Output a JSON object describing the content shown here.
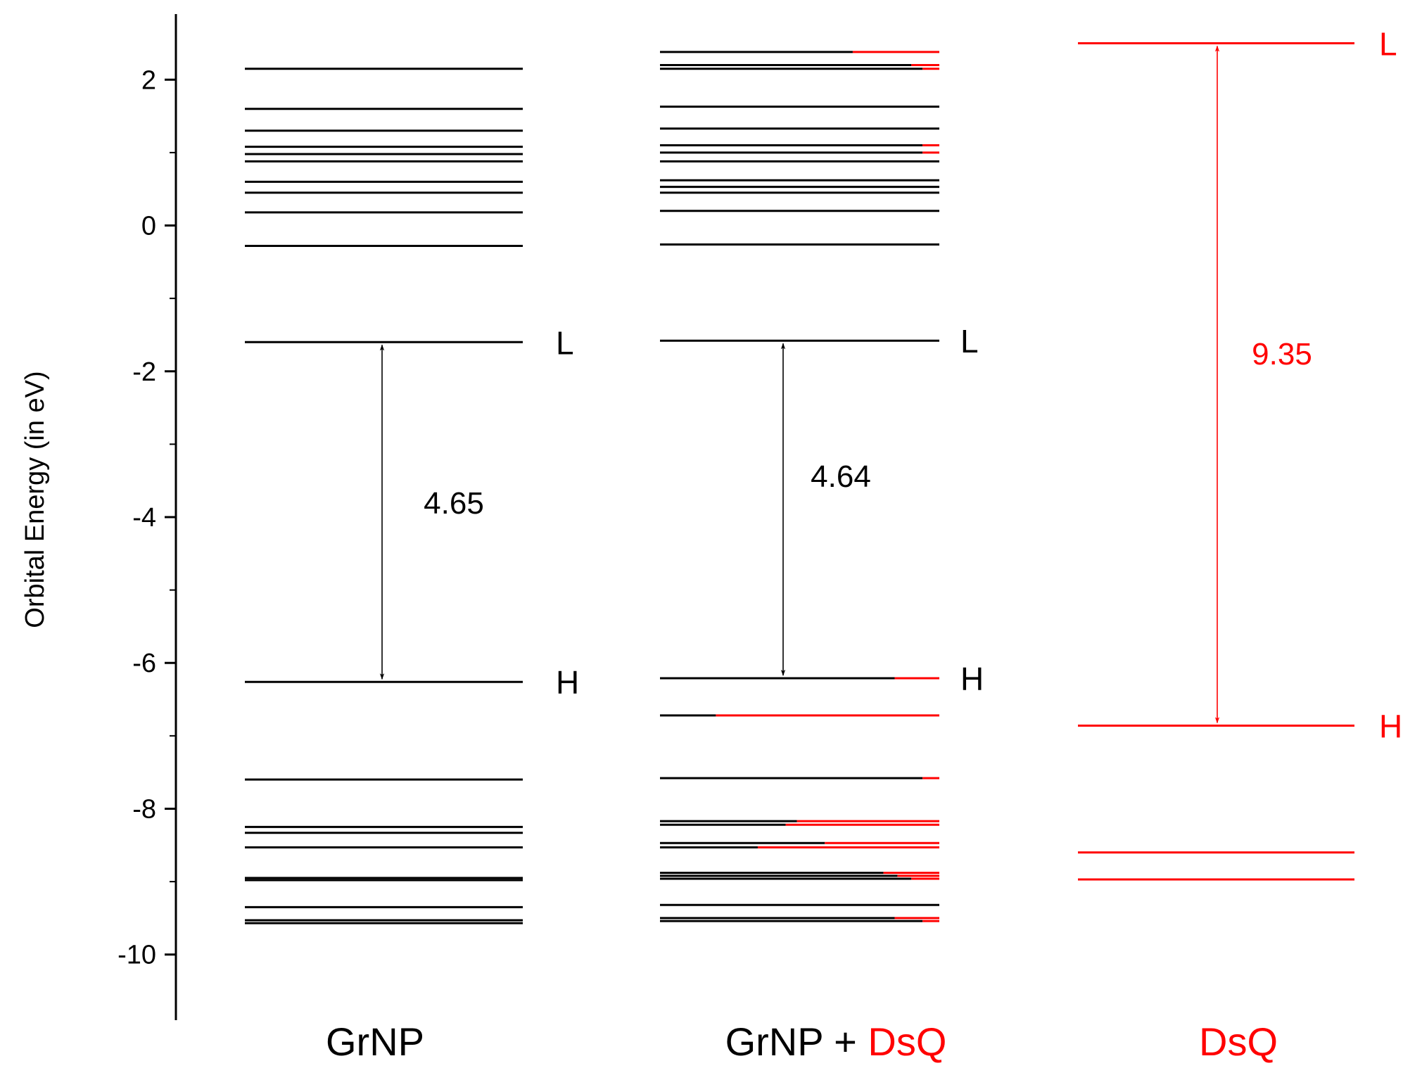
{
  "chart_data": {
    "type": "energy-level diagram",
    "ylabel": "Orbital Energy (in eV)",
    "ylim": [
      -10.9,
      2.9
    ],
    "yticks": [
      -10,
      -8,
      -6,
      -4,
      -2,
      0,
      2
    ],
    "ytick_labels": [
      "-10",
      "-8",
      "-6",
      "-4",
      "-2",
      "0",
      "2"
    ],
    "colors": {
      "primary": "#000000",
      "accent": "#ff0000"
    },
    "columns": [
      {
        "label_parts": [
          {
            "text": "GrNP",
            "color": "#000000"
          }
        ],
        "levels": [
          {
            "energy": 2.15,
            "red_fraction": 0
          },
          {
            "energy": 1.6,
            "red_fraction": 0
          },
          {
            "energy": 1.3,
            "red_fraction": 0
          },
          {
            "energy": 1.08,
            "red_fraction": 0
          },
          {
            "energy": 0.98,
            "red_fraction": 0
          },
          {
            "energy": 0.88,
            "red_fraction": 0
          },
          {
            "energy": 0.6,
            "red_fraction": 0
          },
          {
            "energy": 0.45,
            "red_fraction": 0
          },
          {
            "energy": 0.18,
            "red_fraction": 0
          },
          {
            "energy": -0.28,
            "red_fraction": 0
          },
          {
            "energy": -1.6,
            "red_fraction": 0
          },
          {
            "energy": -6.26,
            "red_fraction": 0
          },
          {
            "energy": -7.6,
            "red_fraction": 0
          },
          {
            "energy": -8.25,
            "red_fraction": 0
          },
          {
            "energy": -8.33,
            "red_fraction": 0
          },
          {
            "energy": -8.53,
            "red_fraction": 0
          },
          {
            "energy": -8.95,
            "red_fraction": 0
          },
          {
            "energy": -8.98,
            "red_fraction": 0
          },
          {
            "energy": -9.35,
            "red_fraction": 0
          },
          {
            "energy": -9.53,
            "red_fraction": 0
          },
          {
            "energy": -9.57,
            "red_fraction": 0
          }
        ],
        "lumo": {
          "energy": -1.6,
          "label": "L"
        },
        "homo": {
          "energy": -6.26,
          "label": "H"
        },
        "gap": {
          "value": "4.65"
        }
      },
      {
        "label_parts": [
          {
            "text": "GrNP + ",
            "color": "#000000"
          },
          {
            "text": "DsQ",
            "color": "#ff0000"
          }
        ],
        "levels": [
          {
            "energy": 2.38,
            "red_fraction": 0.31
          },
          {
            "energy": 2.2,
            "red_fraction": 0.1
          },
          {
            "energy": 2.15,
            "red_fraction": 0.06
          },
          {
            "energy": 1.63,
            "red_fraction": 0
          },
          {
            "energy": 1.33,
            "red_fraction": 0
          },
          {
            "energy": 1.1,
            "red_fraction": 0.06
          },
          {
            "energy": 1.0,
            "red_fraction": 0.06
          },
          {
            "energy": 0.88,
            "red_fraction": 0
          },
          {
            "energy": 0.62,
            "red_fraction": 0
          },
          {
            "energy": 0.53,
            "red_fraction": 0
          },
          {
            "energy": 0.45,
            "red_fraction": 0
          },
          {
            "energy": 0.2,
            "red_fraction": 0
          },
          {
            "energy": -0.26,
            "red_fraction": 0
          },
          {
            "energy": -1.58,
            "red_fraction": 0
          },
          {
            "energy": -6.21,
            "red_fraction": 0.16
          },
          {
            "energy": -6.72,
            "red_fraction": 0.8
          },
          {
            "energy": -7.58,
            "red_fraction": 0.06
          },
          {
            "energy": -8.17,
            "red_fraction": 0.51
          },
          {
            "energy": -8.22,
            "red_fraction": 0.55
          },
          {
            "energy": -8.47,
            "red_fraction": 0.41
          },
          {
            "energy": -8.53,
            "red_fraction": 0.65
          },
          {
            "energy": -8.88,
            "red_fraction": 0.2
          },
          {
            "energy": -8.92,
            "red_fraction": 0.15
          },
          {
            "energy": -8.96,
            "red_fraction": 0.1
          },
          {
            "energy": -9.32,
            "red_fraction": 0
          },
          {
            "energy": -9.5,
            "red_fraction": 0.16
          },
          {
            "energy": -9.54,
            "red_fraction": 0.06
          }
        ],
        "lumo": {
          "energy": -1.58,
          "label": "L"
        },
        "homo": {
          "energy": -6.21,
          "label": "H"
        },
        "gap": {
          "value": "4.64"
        }
      },
      {
        "label_parts": [
          {
            "text": "DsQ",
            "color": "#ff0000"
          }
        ],
        "levels": [
          {
            "energy": 2.5,
            "red_fraction": 1
          },
          {
            "energy": -6.86,
            "red_fraction": 1
          },
          {
            "energy": -8.6,
            "red_fraction": 1
          },
          {
            "energy": -8.97,
            "red_fraction": 1
          }
        ],
        "lumo": {
          "energy": 2.5,
          "label": "L"
        },
        "homo": {
          "energy": -6.86,
          "label": "H"
        },
        "gap": {
          "value": "9.35"
        }
      }
    ]
  }
}
